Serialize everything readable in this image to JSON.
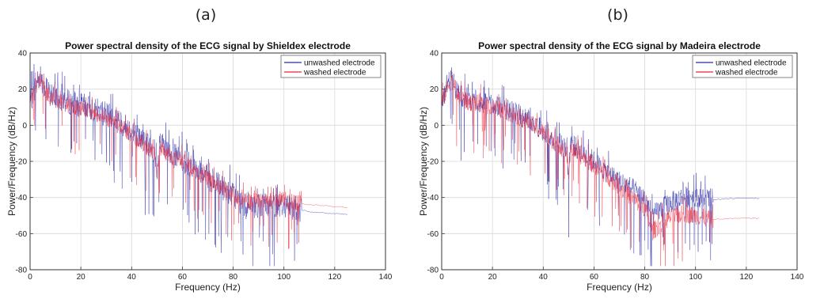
{
  "panels": [
    {
      "letter": "(a)"
    },
    {
      "letter": "(b)"
    }
  ],
  "colors": {
    "unwashed": "#2b2ba8",
    "washed": "#ee2233",
    "grid": "#d9d9d9"
  },
  "chart_data": [
    {
      "type": "line",
      "title": "Power spectral density of the ECG signal by Shieldex electrode",
      "xlabel": "Frequency (Hz)",
      "ylabel": "Power/Frequency (dB/Hz)",
      "xlim": [
        0,
        140
      ],
      "ylim": [
        -80,
        40
      ],
      "xticks": [
        0,
        20,
        40,
        60,
        80,
        100,
        120,
        140
      ],
      "yticks": [
        -80,
        -60,
        -40,
        -20,
        0,
        20,
        40
      ],
      "grid": true,
      "legend_position": "top-right",
      "series": [
        {
          "name": "unwashed electrode",
          "color": "#2b2ba8",
          "x": [
            0,
            2,
            4,
            6,
            8,
            10,
            15,
            20,
            25,
            30,
            35,
            40,
            45,
            49,
            50,
            51,
            55,
            60,
            65,
            70,
            75,
            80,
            83,
            86,
            90,
            95,
            100,
            105,
            110,
            115,
            120,
            125
          ],
          "y": [
            12,
            22,
            28,
            20,
            17,
            16,
            13,
            11,
            9,
            6,
            2,
            -3,
            -9,
            -14,
            -30,
            -10,
            -16,
            -19,
            -24,
            -29,
            -34,
            -38,
            -43,
            -46,
            -45,
            -44,
            -44,
            -46,
            -48,
            -48.5,
            -49,
            -49.5
          ]
        },
        {
          "name": "washed electrode",
          "color": "#ee2233",
          "x": [
            0,
            2,
            4,
            6,
            8,
            10,
            15,
            20,
            25,
            30,
            35,
            40,
            45,
            49,
            50,
            51,
            55,
            60,
            65,
            70,
            75,
            80,
            83,
            86,
            90,
            95,
            100,
            105,
            110,
            115,
            120,
            125
          ],
          "y": [
            13,
            20,
            26,
            18,
            16,
            14,
            11,
            9,
            7,
            4,
            0,
            -5,
            -11,
            -15,
            -28,
            -12,
            -17,
            -20,
            -25,
            -30,
            -34,
            -38,
            -41,
            -42,
            -42,
            -41,
            -41,
            -43,
            -44,
            -44.5,
            -45,
            -45.5
          ]
        }
      ],
      "fill_regions": [
        {
          "series": "unwashed electrode",
          "x_range": [
            0,
            107
          ],
          "spread_db": 14
        },
        {
          "series": "washed electrode",
          "x_range": [
            0,
            107
          ],
          "spread_db": 9
        }
      ]
    },
    {
      "type": "line",
      "title": "Power spectral density of the ECG signal by Madeira electrode",
      "xlabel": "Frequency (Hz)",
      "ylabel": "Power/Frequency (dB/Hz)",
      "xlim": [
        0,
        140
      ],
      "ylim": [
        -80,
        40
      ],
      "xticks": [
        0,
        20,
        40,
        60,
        80,
        100,
        120,
        140
      ],
      "yticks": [
        -80,
        -60,
        -40,
        -20,
        0,
        20,
        40
      ],
      "grid": true,
      "legend_position": "top-right",
      "series": [
        {
          "name": "unwashed electrode",
          "color": "#2b2ba8",
          "x": [
            0,
            2,
            4,
            6,
            8,
            10,
            15,
            20,
            25,
            30,
            35,
            40,
            45,
            49,
            50,
            51,
            55,
            60,
            65,
            70,
            75,
            80,
            83,
            86,
            90,
            95,
            100,
            105,
            110,
            115,
            120,
            125
          ],
          "y": [
            10,
            22,
            28,
            18,
            16,
            15,
            13,
            11,
            9,
            6,
            2,
            -3,
            -8,
            -12,
            -28,
            -10,
            -15,
            -20,
            -26,
            -31,
            -35,
            -40,
            -50,
            -47,
            -43,
            -40,
            -39,
            -41,
            -41,
            -40.5,
            -40.5,
            -40.5
          ]
        },
        {
          "name": "washed electrode",
          "color": "#ee2233",
          "x": [
            0,
            2,
            4,
            6,
            8,
            10,
            15,
            20,
            25,
            30,
            35,
            40,
            45,
            49,
            50,
            51,
            55,
            60,
            65,
            70,
            75,
            80,
            83,
            86,
            90,
            95,
            100,
            105,
            110,
            115,
            120,
            125
          ],
          "y": [
            12,
            20,
            26,
            16,
            15,
            13,
            12,
            10,
            8,
            5,
            1,
            -4,
            -10,
            -14,
            -26,
            -12,
            -17,
            -22,
            -28,
            -34,
            -40,
            -46,
            -59,
            -55,
            -51,
            -49,
            -50,
            -52,
            -52,
            -51.5,
            -51.5,
            -51.5
          ]
        }
      ],
      "fill_regions": [
        {
          "series": "unwashed electrode",
          "x_range": [
            0,
            107
          ],
          "spread_db": 12
        },
        {
          "series": "washed electrode",
          "x_range": [
            0,
            107
          ],
          "spread_db": 10
        }
      ]
    }
  ]
}
